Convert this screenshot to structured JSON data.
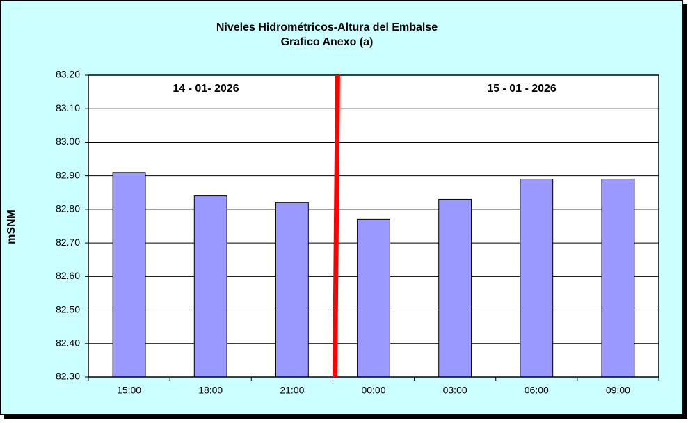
{
  "chart_data": {
    "type": "bar",
    "title": "Niveles Hidrométricos-Altura del Embalse",
    "subtitle": "Grafico Anexo (a)",
    "ylabel": "mSNM",
    "annotations": [
      "14 - 01- 2026",
      "15 - 01 - 2026"
    ],
    "categories": [
      "15:00",
      "18:00",
      "21:00",
      "00:00",
      "03:00",
      "06:00",
      "09:00"
    ],
    "values": [
      82.91,
      82.84,
      82.82,
      82.77,
      82.83,
      82.89,
      82.89
    ],
    "color": "#9999ff",
    "ylim": [
      82.3,
      83.2
    ],
    "yticks": [
      {
        "value": 82.3,
        "label": "82.30"
      },
      {
        "value": 82.4,
        "label": "82.40"
      },
      {
        "value": 82.5,
        "label": "82.50"
      },
      {
        "value": 82.6,
        "label": "82.60"
      },
      {
        "value": 82.7,
        "label": "82.70"
      },
      {
        "value": 82.8,
        "label": "82.80"
      },
      {
        "value": 82.9,
        "label": "82.90"
      },
      {
        "value": 83.0,
        "label": "83.00"
      },
      {
        "value": 83.1,
        "label": "83.10"
      },
      {
        "value": 83.2,
        "label": "83.20"
      }
    ],
    "grid": true
  }
}
